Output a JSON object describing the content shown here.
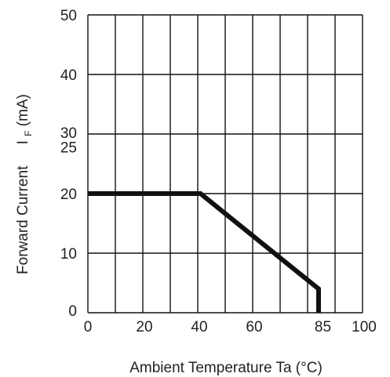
{
  "chart_data": {
    "type": "line",
    "title": "",
    "xlabel": "Ambient Temperature Ta (°C)",
    "ylabel": {
      "main": "Forward Current",
      "symbol": "I",
      "subscript": "F",
      "unit": "(mA)"
    },
    "xlim": [
      0,
      100
    ],
    "ylim": [
      0,
      50
    ],
    "x_ticks": [
      "0",
      "20",
      "40",
      "60",
      "85",
      "100"
    ],
    "x_tick_values": [
      0,
      20,
      40,
      60,
      85,
      100
    ],
    "y_ticks": [
      "0",
      "10",
      "20",
      "25",
      "30",
      "40",
      "50"
    ],
    "y_tick_values": [
      0,
      10,
      20,
      25,
      30,
      40,
      50
    ],
    "grid": true,
    "x_grid": [
      0,
      10,
      20,
      30,
      40,
      50,
      60,
      70,
      80,
      90,
      100
    ],
    "y_grid": [
      0,
      10,
      20,
      30,
      40,
      50
    ],
    "series": [
      {
        "x": [
          0,
          41,
          84,
          84
        ],
        "y": [
          20,
          20,
          4,
          0
        ],
        "color": "#111111"
      }
    ]
  }
}
